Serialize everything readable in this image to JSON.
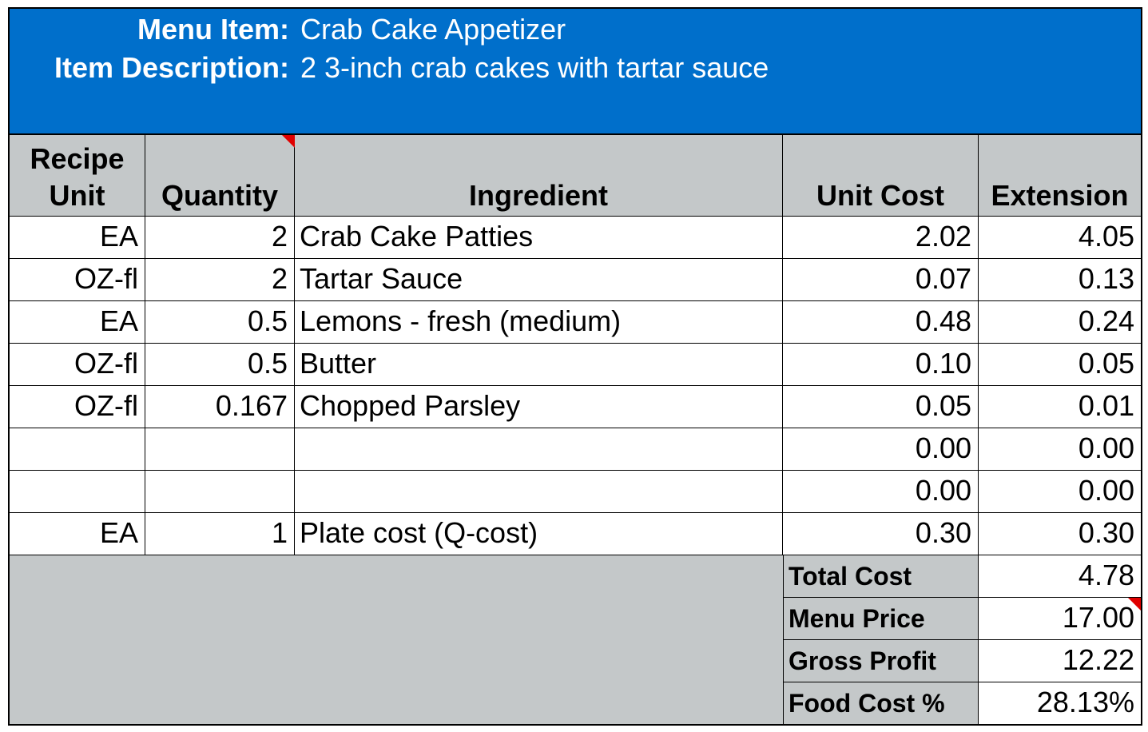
{
  "header": {
    "menu_item_label": "Menu Item:",
    "menu_item_value": "Crab Cake Appetizer",
    "description_label": "Item Description:",
    "description_value": "2 3-inch crab cakes with tartar sauce"
  },
  "columns": {
    "recipe_unit_line1": "Recipe",
    "recipe_unit_line2": "Unit",
    "quantity": "Quantity",
    "ingredient": "Ingredient",
    "unit_cost": "Unit Cost",
    "extension": "Extension"
  },
  "rows": [
    {
      "unit": "EA",
      "qty": "2",
      "ingredient": "Crab Cake Patties",
      "unit_cost": "2.02",
      "extension": "4.05"
    },
    {
      "unit": "OZ-fl",
      "qty": "2",
      "ingredient": "Tartar Sauce",
      "unit_cost": "0.07",
      "extension": "0.13"
    },
    {
      "unit": "EA",
      "qty": "0.5",
      "ingredient": "Lemons - fresh (medium)",
      "unit_cost": "0.48",
      "extension": "0.24"
    },
    {
      "unit": "OZ-fl",
      "qty": "0.5",
      "ingredient": "Butter",
      "unit_cost": "0.10",
      "extension": "0.05"
    },
    {
      "unit": "OZ-fl",
      "qty": "0.167",
      "ingredient": "Chopped Parsley",
      "unit_cost": "0.05",
      "extension": "0.01"
    },
    {
      "unit": "",
      "qty": "",
      "ingredient": "",
      "unit_cost": "0.00",
      "extension": "0.00"
    },
    {
      "unit": "",
      "qty": "",
      "ingredient": "",
      "unit_cost": "0.00",
      "extension": "0.00"
    },
    {
      "unit": "EA",
      "qty": "1",
      "ingredient": "Plate cost (Q-cost)",
      "unit_cost": "0.30",
      "extension": "0.30"
    }
  ],
  "summary": [
    {
      "label": "Total Cost",
      "value": "4.78"
    },
    {
      "label": "Menu Price",
      "value": "17.00"
    },
    {
      "label": "Gross Profit",
      "value": "12.22"
    },
    {
      "label": "Food Cost %",
      "value": "28.13%"
    }
  ],
  "colors": {
    "banner": "#006fcb",
    "header_gray": "#c4c8c9",
    "comment_flag": "#e00000"
  }
}
